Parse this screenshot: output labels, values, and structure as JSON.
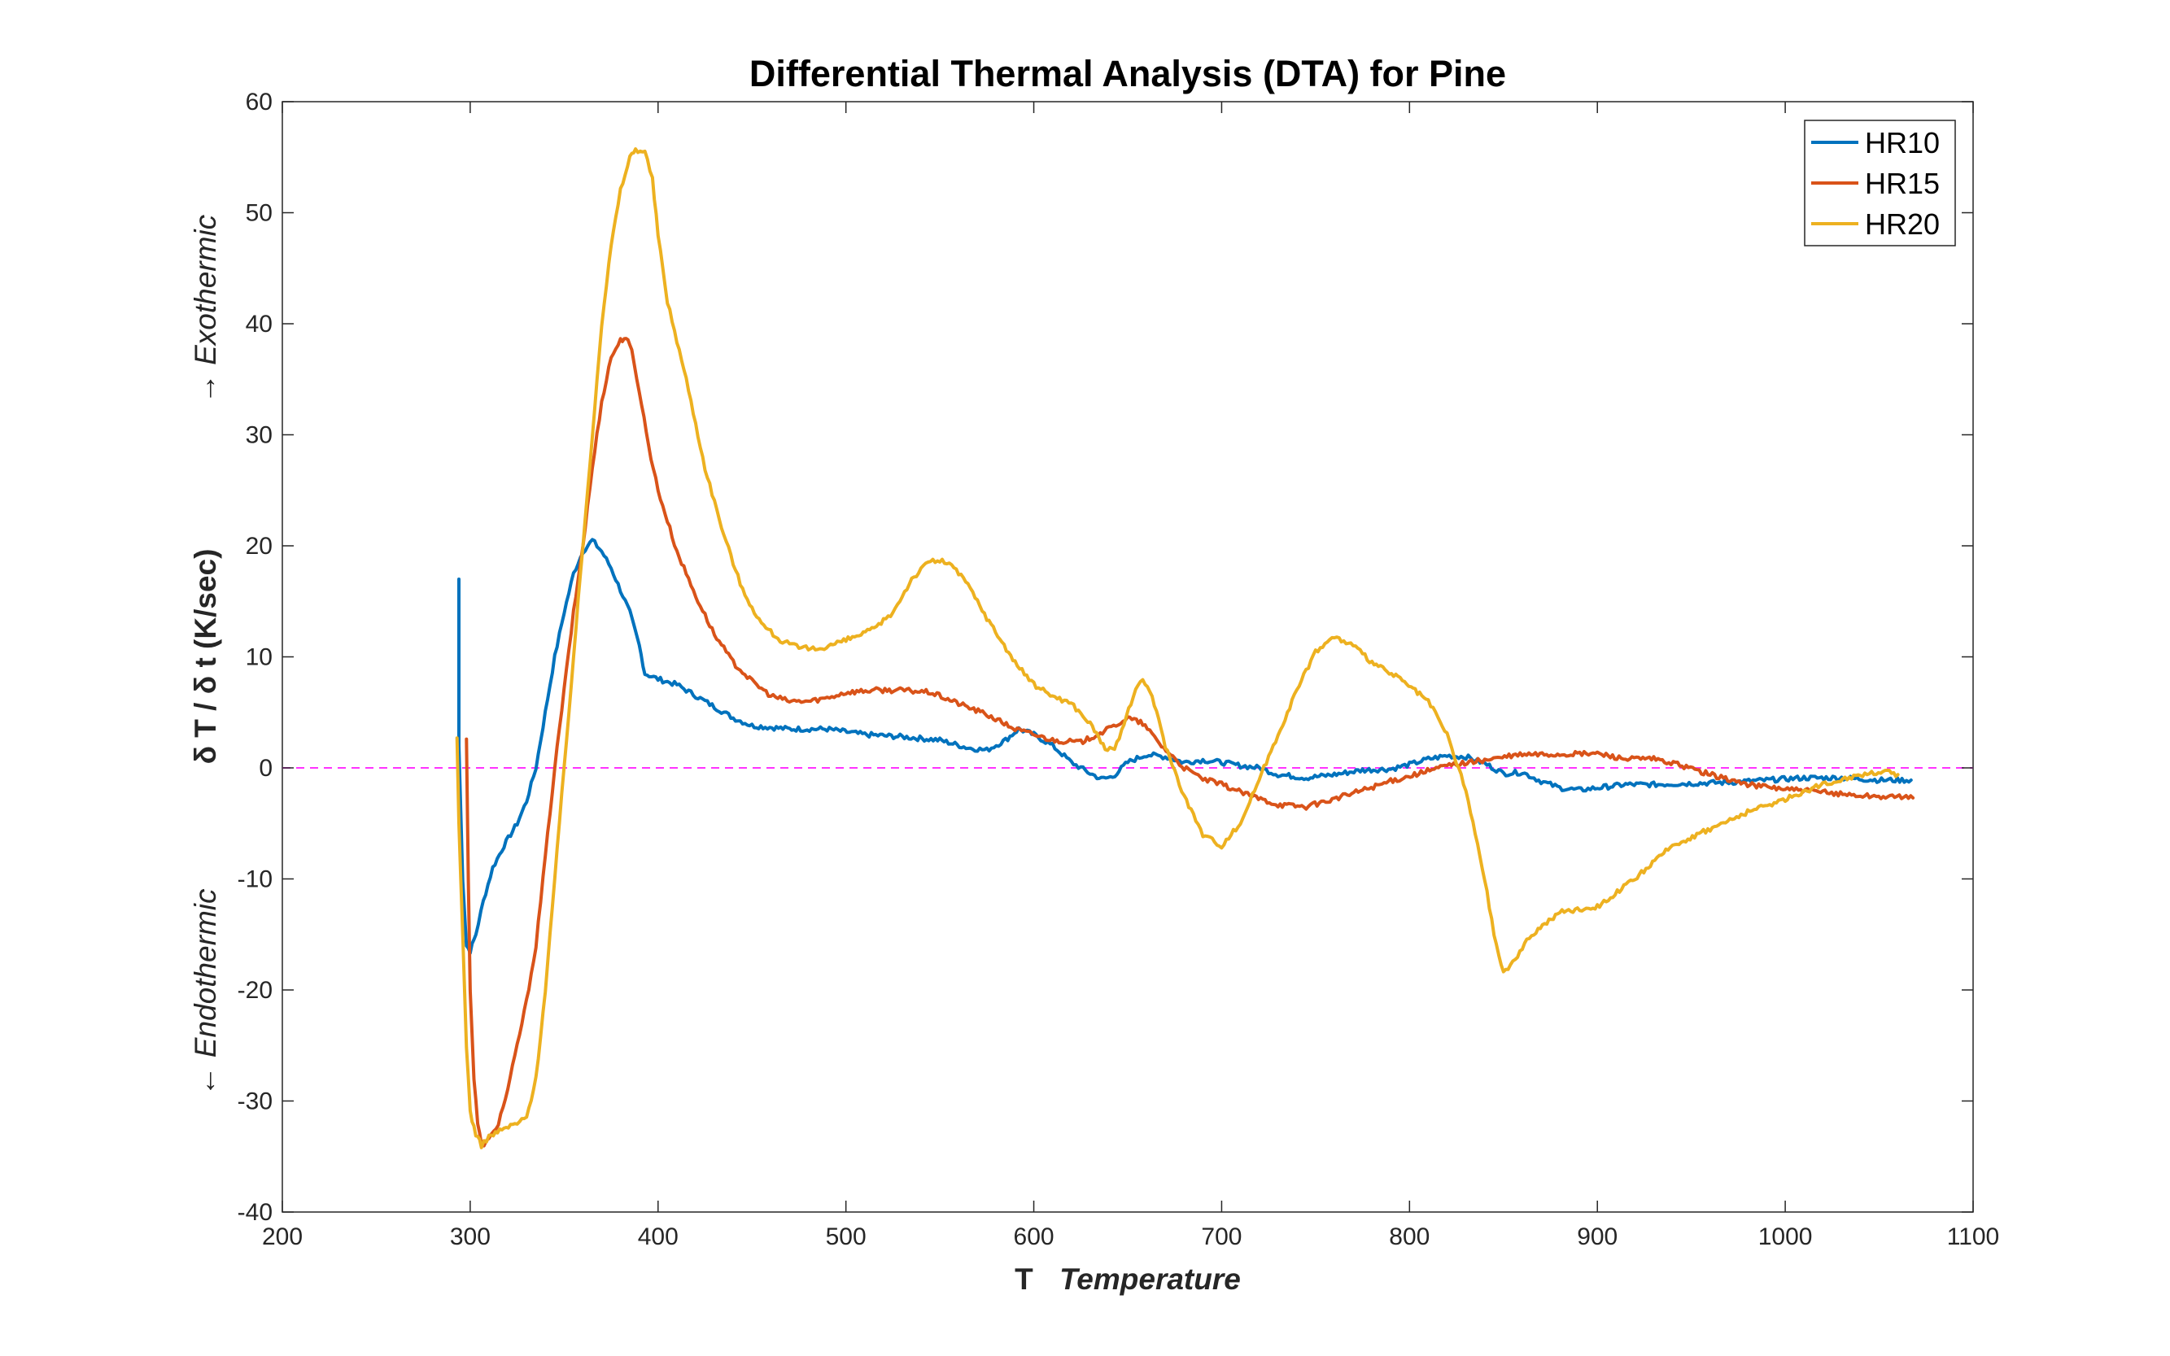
{
  "chart_data": {
    "type": "line",
    "title": "Differential Thermal Analysis (DTA) for Pine",
    "xlabel_symbol": "T",
    "xlabel_text": "Temperature",
    "ylabel_main": "δ T / δ t (K/sec)",
    "ylabel_up": "→ Exothermic",
    "ylabel_down": "← Endothermic",
    "xlim": [
      200,
      1100
    ],
    "ylim": [
      -40,
      60
    ],
    "xticks": [
      200,
      300,
      400,
      500,
      600,
      700,
      800,
      900,
      1000,
      1100
    ],
    "yticks": [
      -40,
      -30,
      -20,
      -10,
      0,
      10,
      20,
      30,
      40,
      50,
      60
    ],
    "grid": false,
    "legend_position": "top-right",
    "reference_line": {
      "y": 0,
      "color": "#ff33ff",
      "style": "dashed"
    },
    "series": [
      {
        "name": "HR10",
        "color": "#0072bd",
        "points": [
          [
            294,
            17
          ],
          [
            294,
            2
          ],
          [
            296,
            -10
          ],
          [
            298,
            -16
          ],
          [
            300,
            -16.5
          ],
          [
            303,
            -15
          ],
          [
            307,
            -12
          ],
          [
            312,
            -9
          ],
          [
            318,
            -7
          ],
          [
            325,
            -5
          ],
          [
            330,
            -3
          ],
          [
            335,
            0
          ],
          [
            340,
            5
          ],
          [
            345,
            10
          ],
          [
            350,
            14
          ],
          [
            355,
            17.5
          ],
          [
            360,
            19.5
          ],
          [
            365,
            20.5
          ],
          [
            370,
            19.5
          ],
          [
            375,
            18
          ],
          [
            380,
            16
          ],
          [
            385,
            14
          ],
          [
            390,
            11
          ],
          [
            393,
            8.5
          ],
          [
            400,
            8
          ],
          [
            410,
            7.5
          ],
          [
            420,
            6.5
          ],
          [
            430,
            5.5
          ],
          [
            440,
            4.5
          ],
          [
            450,
            3.8
          ],
          [
            470,
            3.5
          ],
          [
            490,
            3.5
          ],
          [
            510,
            3
          ],
          [
            530,
            2.8
          ],
          [
            550,
            2.5
          ],
          [
            565,
            1.8
          ],
          [
            575,
            1.6
          ],
          [
            585,
            2.5
          ],
          [
            592,
            3.5
          ],
          [
            600,
            3
          ],
          [
            610,
            2
          ],
          [
            620,
            0.5
          ],
          [
            630,
            -0.5
          ],
          [
            636,
            -1
          ],
          [
            642,
            -0.8
          ],
          [
            650,
            0.5
          ],
          [
            660,
            1.2
          ],
          [
            670,
            1
          ],
          [
            680,
            0.5
          ],
          [
            690,
            0.7
          ],
          [
            700,
            0.5
          ],
          [
            710,
            0.2
          ],
          [
            720,
            0
          ],
          [
            730,
            -0.6
          ],
          [
            745,
            -0.9
          ],
          [
            760,
            -0.6
          ],
          [
            775,
            -0.2
          ],
          [
            790,
            -0.1
          ],
          [
            800,
            0.3
          ],
          [
            810,
            0.8
          ],
          [
            820,
            1.1
          ],
          [
            830,
            1
          ],
          [
            840,
            0.4
          ],
          [
            850,
            -0.5
          ],
          [
            860,
            -0.4
          ],
          [
            870,
            -1.2
          ],
          [
            880,
            -1.8
          ],
          [
            890,
            -2
          ],
          [
            900,
            -1.8
          ],
          [
            915,
            -1.5
          ],
          [
            930,
            -1.5
          ],
          [
            950,
            -1.4
          ],
          [
            970,
            -1.3
          ],
          [
            990,
            -1.1
          ],
          [
            1010,
            -0.9
          ],
          [
            1030,
            -0.9
          ],
          [
            1050,
            -1.1
          ],
          [
            1067,
            -1.1
          ]
        ]
      },
      {
        "name": "HR15",
        "color": "#d95319",
        "points": [
          [
            298,
            2.5
          ],
          [
            299,
            -10
          ],
          [
            300,
            -20
          ],
          [
            302,
            -28
          ],
          [
            304,
            -32
          ],
          [
            306,
            -34
          ],
          [
            310,
            -33.5
          ],
          [
            315,
            -32
          ],
          [
            320,
            -29
          ],
          [
            325,
            -25
          ],
          [
            330,
            -21
          ],
          [
            335,
            -16
          ],
          [
            340,
            -8
          ],
          [
            345,
            0
          ],
          [
            350,
            7
          ],
          [
            355,
            14
          ],
          [
            360,
            20
          ],
          [
            365,
            27
          ],
          [
            370,
            33
          ],
          [
            375,
            37
          ],
          [
            380,
            38.5
          ],
          [
            383,
            38.8
          ],
          [
            386,
            37.5
          ],
          [
            390,
            34
          ],
          [
            395,
            29
          ],
          [
            400,
            25
          ],
          [
            410,
            19.5
          ],
          [
            420,
            15.5
          ],
          [
            430,
            12
          ],
          [
            440,
            9.5
          ],
          [
            450,
            7.8
          ],
          [
            460,
            6.5
          ],
          [
            470,
            6
          ],
          [
            480,
            6
          ],
          [
            490,
            6.3
          ],
          [
            500,
            6.8
          ],
          [
            515,
            7
          ],
          [
            530,
            7
          ],
          [
            545,
            6.8
          ],
          [
            560,
            5.8
          ],
          [
            575,
            4.8
          ],
          [
            590,
            3.5
          ],
          [
            610,
            2.5
          ],
          [
            625,
            2.3
          ],
          [
            640,
            3.5
          ],
          [
            650,
            4.5
          ],
          [
            658,
            4
          ],
          [
            668,
            2
          ],
          [
            680,
            0
          ],
          [
            690,
            -1
          ],
          [
            700,
            -1.5
          ],
          [
            715,
            -2.5
          ],
          [
            730,
            -3.3
          ],
          [
            745,
            -3.5
          ],
          [
            760,
            -2.8
          ],
          [
            775,
            -2
          ],
          [
            790,
            -1.2
          ],
          [
            805,
            -0.5
          ],
          [
            820,
            0.2
          ],
          [
            840,
            0.7
          ],
          [
            860,
            1.2
          ],
          [
            880,
            1.2
          ],
          [
            900,
            1.3
          ],
          [
            915,
            0.8
          ],
          [
            930,
            0.8
          ],
          [
            945,
            0.2
          ],
          [
            960,
            -0.6
          ],
          [
            980,
            -1.5
          ],
          [
            1000,
            -1.9
          ],
          [
            1020,
            -2.2
          ],
          [
            1040,
            -2.5
          ],
          [
            1068,
            -2.7
          ]
        ]
      },
      {
        "name": "HR20",
        "color": "#edb120",
        "points": [
          [
            293,
            2.5
          ],
          [
            294,
            -5
          ],
          [
            296,
            -15
          ],
          [
            298,
            -25
          ],
          [
            300,
            -31
          ],
          [
            303,
            -33
          ],
          [
            306,
            -34
          ],
          [
            310,
            -33.2
          ],
          [
            318,
            -32.5
          ],
          [
            325,
            -32
          ],
          [
            330,
            -31.5
          ],
          [
            335,
            -28
          ],
          [
            340,
            -20
          ],
          [
            345,
            -10
          ],
          [
            350,
            0
          ],
          [
            355,
            10
          ],
          [
            360,
            20
          ],
          [
            365,
            30
          ],
          [
            370,
            40
          ],
          [
            375,
            47
          ],
          [
            380,
            52
          ],
          [
            385,
            55
          ],
          [
            388,
            55.7
          ],
          [
            393,
            55.5
          ],
          [
            397,
            53
          ],
          [
            400,
            48
          ],
          [
            405,
            42
          ],
          [
            415,
            35
          ],
          [
            425,
            27
          ],
          [
            435,
            21
          ],
          [
            445,
            16
          ],
          [
            455,
            13
          ],
          [
            465,
            11.5
          ],
          [
            475,
            10.8
          ],
          [
            485,
            10.7
          ],
          [
            500,
            11.5
          ],
          [
            515,
            12.5
          ],
          [
            525,
            14
          ],
          [
            535,
            17
          ],
          [
            545,
            18.7
          ],
          [
            555,
            18.5
          ],
          [
            565,
            16.5
          ],
          [
            575,
            13.5
          ],
          [
            590,
            9.5
          ],
          [
            600,
            7.5
          ],
          [
            610,
            6.5
          ],
          [
            620,
            5.8
          ],
          [
            630,
            4
          ],
          [
            638,
            1.8
          ],
          [
            643,
            1.5
          ],
          [
            648,
            4
          ],
          [
            653,
            6.5
          ],
          [
            658,
            8
          ],
          [
            663,
            6.5
          ],
          [
            670,
            2
          ],
          [
            680,
            -2.5
          ],
          [
            690,
            -6
          ],
          [
            700,
            -7
          ],
          [
            710,
            -5
          ],
          [
            720,
            -1
          ],
          [
            730,
            3
          ],
          [
            740,
            7
          ],
          [
            750,
            10.5
          ],
          [
            760,
            11.8
          ],
          [
            770,
            11
          ],
          [
            780,
            9.5
          ],
          [
            795,
            8
          ],
          [
            810,
            6
          ],
          [
            820,
            3
          ],
          [
            830,
            -2
          ],
          [
            840,
            -10
          ],
          [
            845,
            -15
          ],
          [
            850,
            -18.5
          ],
          [
            855,
            -17.5
          ],
          [
            865,
            -15
          ],
          [
            880,
            -13
          ],
          [
            900,
            -12.5
          ],
          [
            920,
            -10
          ],
          [
            940,
            -7
          ],
          [
            960,
            -5.5
          ],
          [
            980,
            -4
          ],
          [
            1000,
            -2.8
          ],
          [
            1020,
            -1.5
          ],
          [
            1040,
            -0.6
          ],
          [
            1052,
            -0.3
          ],
          [
            1060,
            -0.6
          ]
        ]
      }
    ]
  }
}
